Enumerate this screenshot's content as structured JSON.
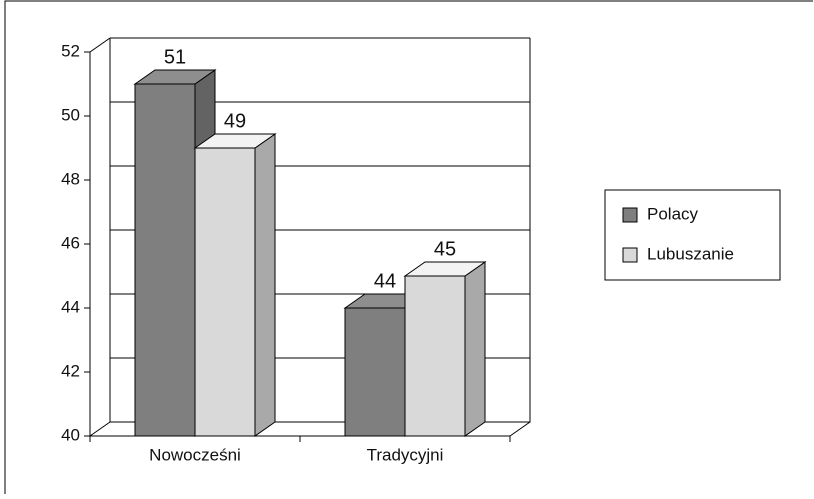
{
  "chart_data": {
    "type": "bar3d",
    "categories": [
      "Nowocześni",
      "Tradycyjni"
    ],
    "series": [
      {
        "name": "Polacy",
        "color": "#7f7f7f",
        "values": [
          51,
          44
        ]
      },
      {
        "name": "Lubuszanie",
        "color": "#d9d9d9",
        "values": [
          49,
          45
        ]
      }
    ],
    "ylim": [
      40,
      52
    ],
    "yticks": [
      40,
      42,
      44,
      46,
      48,
      50,
      52
    ],
    "grid": true,
    "legend": "right"
  }
}
